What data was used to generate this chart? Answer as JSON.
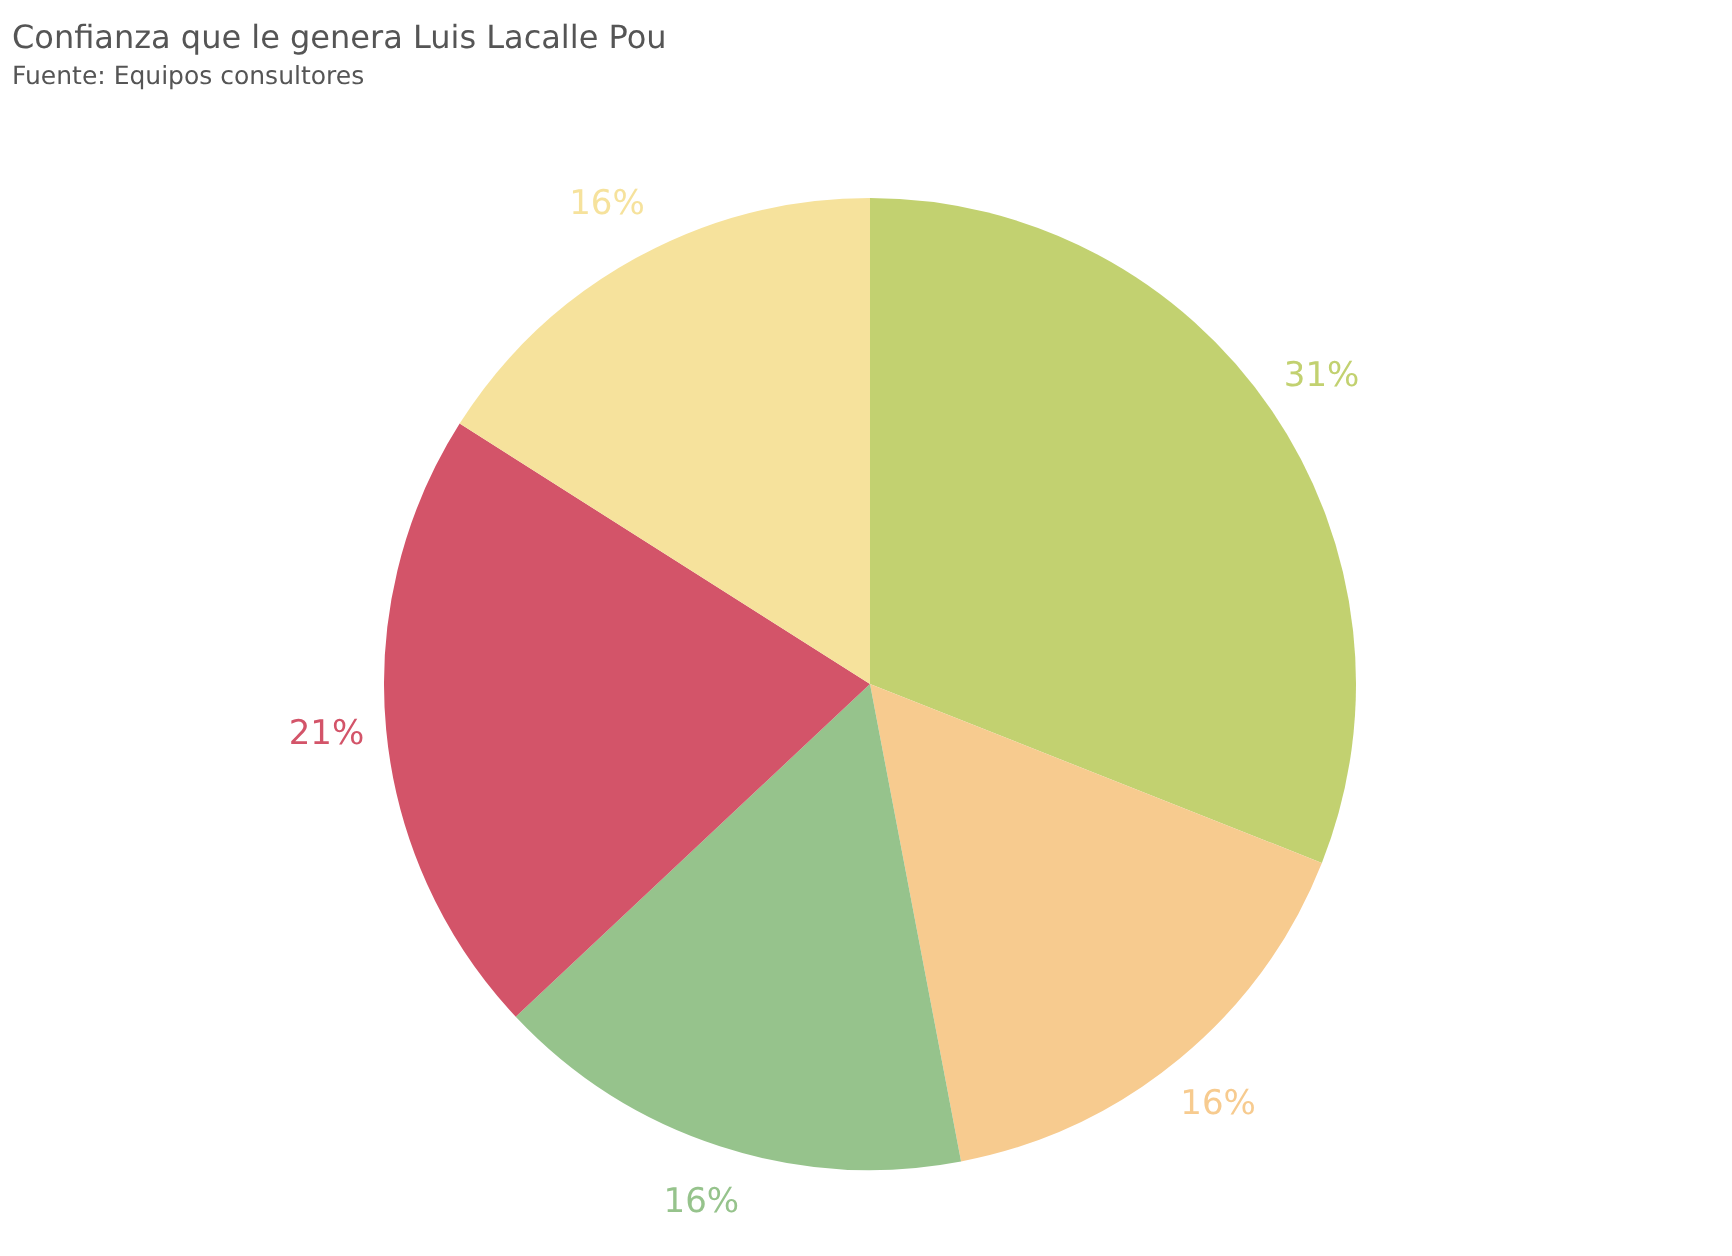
{
  "chart_data": {
    "type": "pie",
    "title": "Confianza que le genera Luis Lacalle Pou",
    "subtitle": "Fuente: Equipos consultores",
    "categories": [
      null,
      null,
      null,
      null,
      null
    ],
    "values": [
      31,
      16,
      16,
      21,
      16
    ],
    "colors": [
      "#c2d170",
      "#f7cb8f",
      "#96c38c",
      "#d35469",
      "#f6e29c"
    ],
    "value_labels": [
      "31%",
      "16%",
      "16%",
      "21%",
      "16%"
    ],
    "legend": false
  }
}
